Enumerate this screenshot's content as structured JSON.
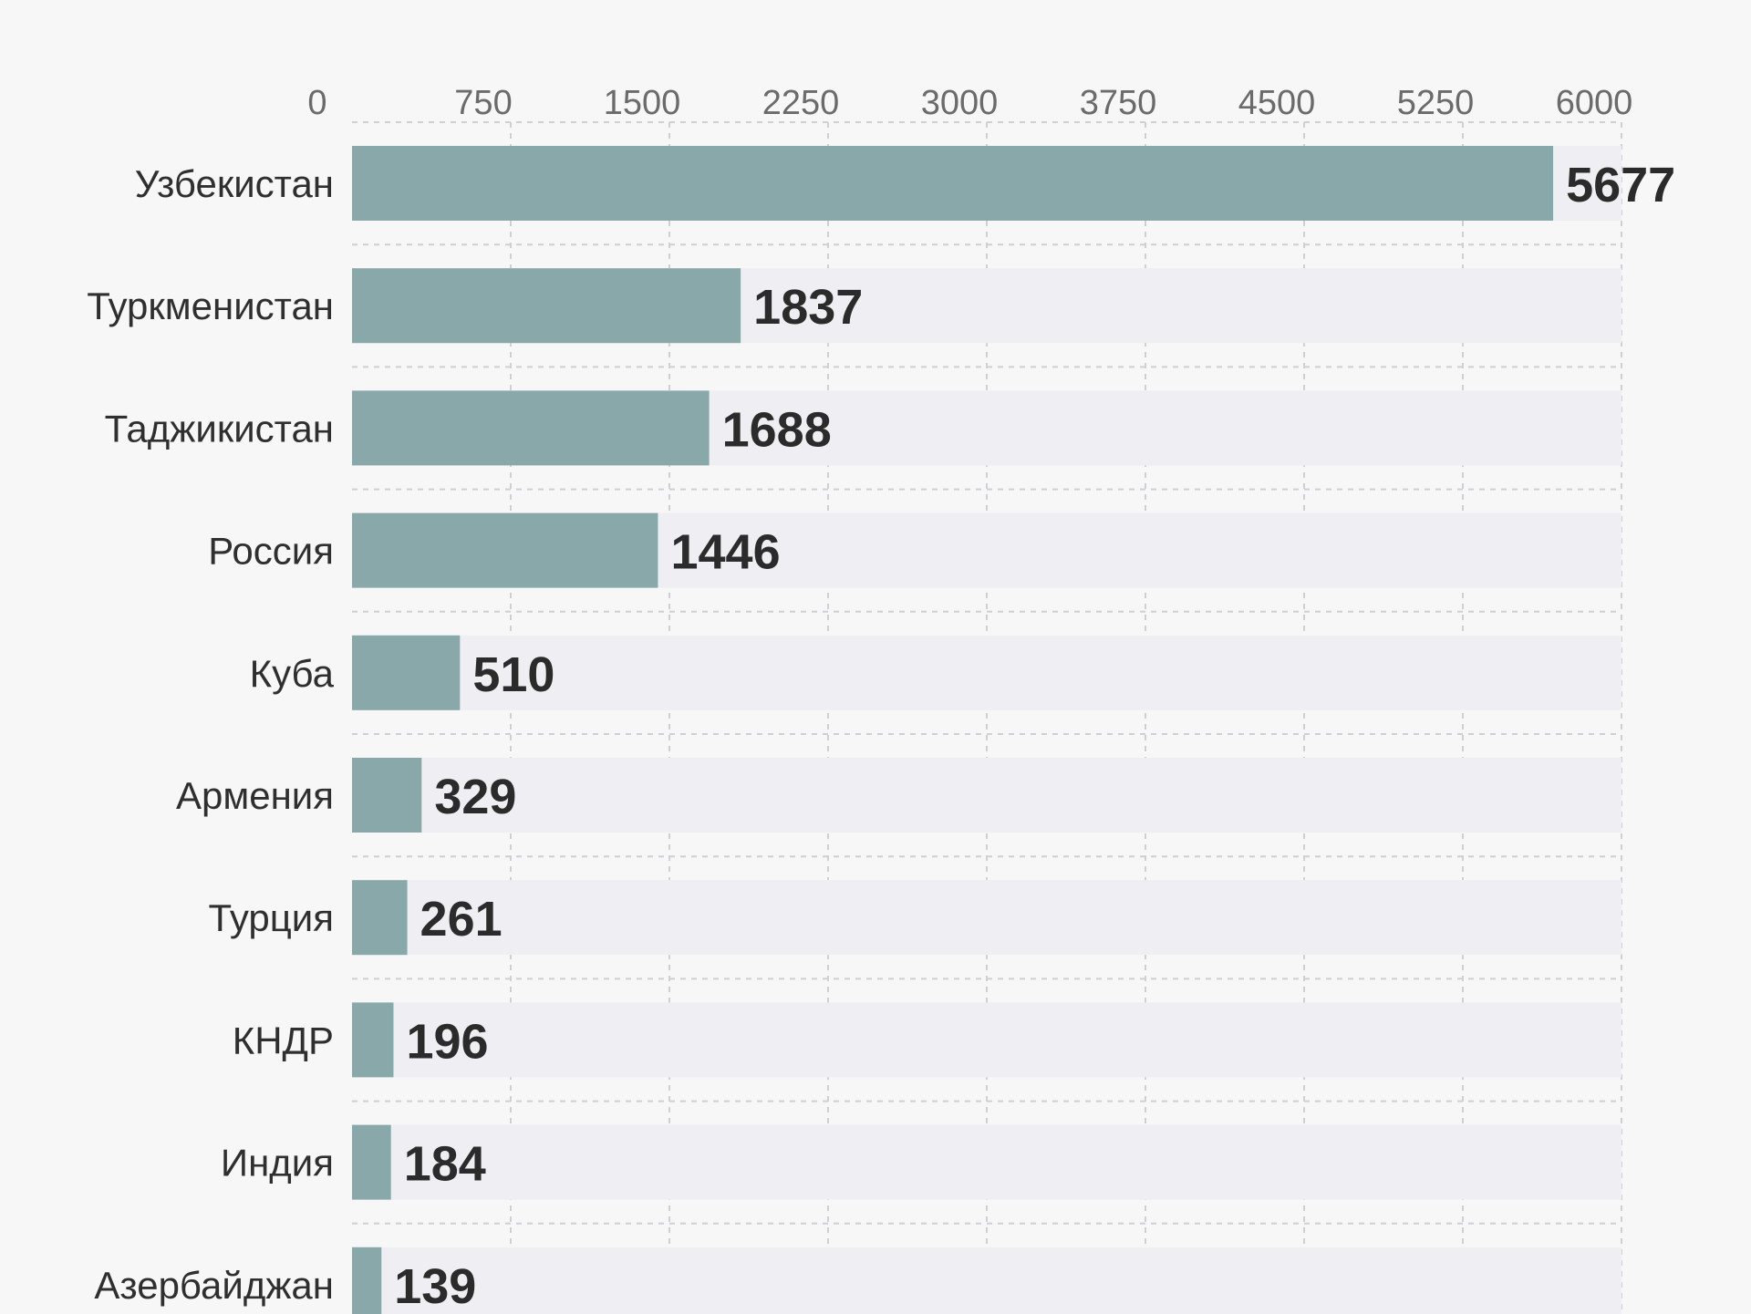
{
  "chart_data": {
    "type": "bar",
    "orientation": "horizontal",
    "categories": [
      "Узбекистан",
      "Туркменистан",
      "Таджикистан",
      "Россия",
      "Куба",
      "Армения",
      "Турция",
      "КНДР",
      "Индия",
      "Азербайджан"
    ],
    "values": [
      5677,
      1837,
      1688,
      1446,
      510,
      329,
      261,
      196,
      184,
      139
    ],
    "value_labels": [
      "5677",
      "1837",
      "1688",
      "1446",
      "510",
      "329",
      "261",
      "196",
      "184",
      "139"
    ],
    "x_ticks": [
      "0",
      "750",
      "1500",
      "2250",
      "3000",
      "3750",
      "4500",
      "5250",
      "6000"
    ],
    "xlim": [
      0,
      6000
    ],
    "grid": true,
    "tick_position": "top",
    "bar_color": "#89a8aa",
    "track_color": "#efeff3"
  }
}
